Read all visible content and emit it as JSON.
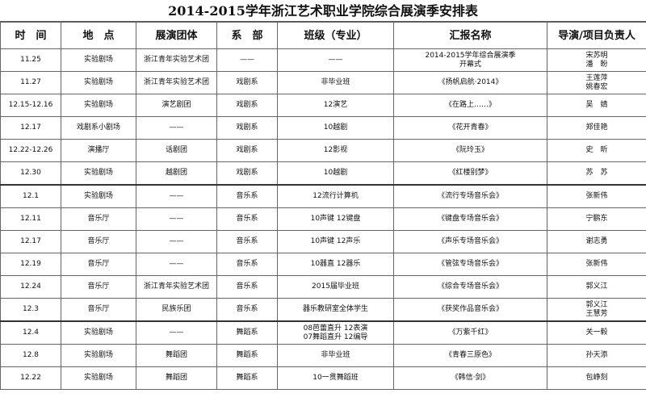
{
  "title": "2014-2015学年浙江艺术职业学院综合展演季安排表",
  "headers": [
    "时　间",
    "地　点",
    "展演团体",
    "系　部",
    "班级（专业）",
    "汇报名称",
    "导演/项目负责人"
  ],
  "rows": [
    [
      "11.25",
      "实验剧场",
      "浙江青年实验艺术团",
      "——",
      "——",
      "2014-2015学年综合展演季\n开幕式",
      "宋苏明\n潘　盼"
    ],
    [
      "11.27",
      "实验剧场",
      "浙江青年实验艺术团",
      "戏剧系",
      "非毕业班",
      "《扬帆启航·2014》",
      "王莲萍\n姚春宏"
    ],
    [
      "12.15-12.16",
      "实验剧场",
      "演艺剧团",
      "戏剧系",
      "12演艺",
      "《在路上……》",
      "吴　婧"
    ],
    [
      "12.17",
      "戏剧系小剧场",
      "——",
      "戏剧系",
      "10越剧",
      "《花开青春》",
      "郑佳艳"
    ],
    [
      "12.22-12.26",
      "演播厅",
      "话剧团",
      "戏剧系",
      "12影视",
      "《阮玲玉》",
      "史　昕"
    ],
    [
      "12.30",
      "实验剧场",
      "越剧团",
      "戏剧系",
      "10越剧",
      "《红楼别梦》",
      "苏　苏"
    ],
    [
      "12.1",
      "实验剧场",
      "——",
      "音乐系",
      "12流行计算机",
      "《流行专场音乐会》",
      "张新伟"
    ],
    [
      "12.11",
      "音乐厅",
      "——",
      "音乐系",
      "10声键 12键盘",
      "《键盘专场音乐会》",
      "宁鹏东"
    ],
    [
      "12.17",
      "音乐厅",
      "——",
      "音乐系",
      "10声键 12声乐",
      "《声乐专场音乐会》",
      "谢志勇"
    ],
    [
      "12.19",
      "音乐厅",
      "——",
      "音乐系",
      "10器直 12器乐",
      "《管弦专场音乐会》",
      "张新伟"
    ],
    [
      "12.24",
      "音乐厅",
      "浙江青年实验艺术团",
      "音乐系",
      "2015届毕业班",
      "《综合专场音乐会》",
      "郭义江"
    ],
    [
      "12.3",
      "音乐厅",
      "民族乐团",
      "音乐系",
      "器乐教研室全体学生",
      "《获奖作品音乐会》",
      "郭义江\n王慧芳"
    ],
    [
      "12.4",
      "实验剧场",
      "——",
      "舞蹈系",
      "08芭蕾直升 12表演\n07舞蹈直升 12编导",
      "《万紫千红》",
      "关一毅"
    ],
    [
      "12.8",
      "实验剧场",
      "舞蹈团",
      "舞蹈系",
      "非毕业班",
      "《青春三原色》",
      "孙天添"
    ],
    [
      "12.22",
      "实验剧场",
      "舞蹈团",
      "舞蹈系",
      "10一贯舞蹈班",
      "《韩信·剑》",
      "包峥刻"
    ]
  ],
  "thick_after_rows": [
    5,
    11
  ]
}
